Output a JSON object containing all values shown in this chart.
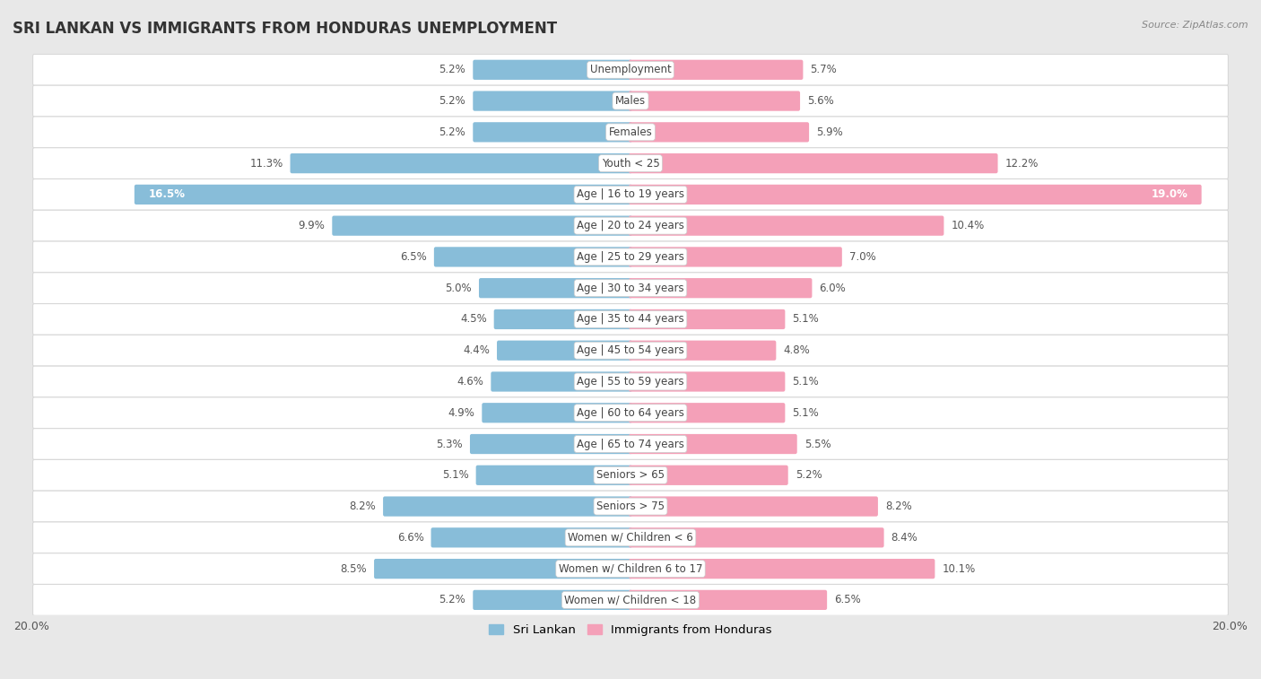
{
  "title": "SRI LANKAN VS IMMIGRANTS FROM HONDURAS UNEMPLOYMENT",
  "source": "Source: ZipAtlas.com",
  "categories": [
    "Unemployment",
    "Males",
    "Females",
    "Youth < 25",
    "Age | 16 to 19 years",
    "Age | 20 to 24 years",
    "Age | 25 to 29 years",
    "Age | 30 to 34 years",
    "Age | 35 to 44 years",
    "Age | 45 to 54 years",
    "Age | 55 to 59 years",
    "Age | 60 to 64 years",
    "Age | 65 to 74 years",
    "Seniors > 65",
    "Seniors > 75",
    "Women w/ Children < 6",
    "Women w/ Children 6 to 17",
    "Women w/ Children < 18"
  ],
  "sri_lankan": [
    5.2,
    5.2,
    5.2,
    11.3,
    16.5,
    9.9,
    6.5,
    5.0,
    4.5,
    4.4,
    4.6,
    4.9,
    5.3,
    5.1,
    8.2,
    6.6,
    8.5,
    5.2
  ],
  "honduras": [
    5.7,
    5.6,
    5.9,
    12.2,
    19.0,
    10.4,
    7.0,
    6.0,
    5.1,
    4.8,
    5.1,
    5.1,
    5.5,
    5.2,
    8.2,
    8.4,
    10.1,
    6.5
  ],
  "sri_lankan_color": "#88bdd9",
  "honduras_color": "#f4a0b8",
  "row_bg_color": "#ffffff",
  "row_border_color": "#d8d8d8",
  "outer_bg_color": "#e8e8e8",
  "axis_max": 20.0,
  "legend_sri_lankan": "Sri Lankan",
  "legend_honduras": "Immigrants from Honduras",
  "title_fontsize": 12,
  "label_fontsize": 8.5,
  "value_fontsize": 8.5
}
